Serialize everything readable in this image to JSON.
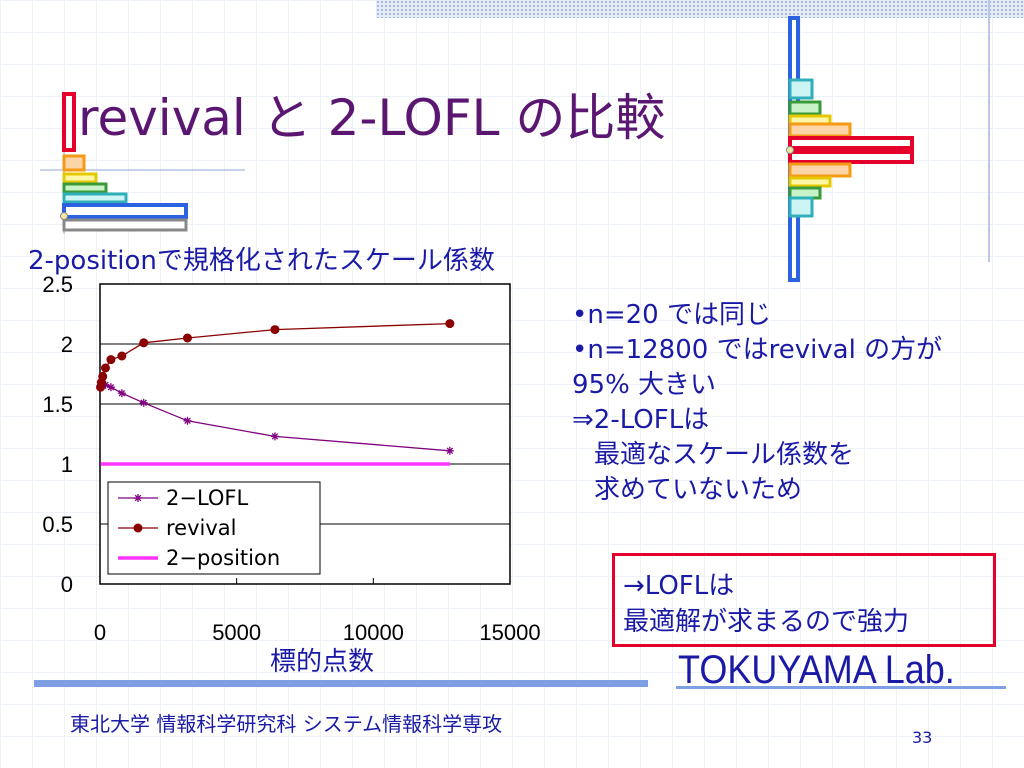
{
  "slide": {
    "title": "revival と 2-LOFL の比較",
    "subtitle": "2-positionで規格化されたスケール係数",
    "bullets": [
      {
        "text": "•n=20 では同じ",
        "indent": false
      },
      {
        "text": "•n=12800 ではrevival の方が",
        "indent": false
      },
      {
        "text": "95% 大きい",
        "indent": false
      },
      {
        "text": "⇒2-LOFLは",
        "indent": false
      },
      {
        "text": "最適なスケール係数を",
        "indent": true
      },
      {
        "text": "求めていないため",
        "indent": true
      }
    ],
    "box_lines": [
      "→LOFLは",
      "最適解が求まるので強力"
    ],
    "lab_name": "TOKUYAMA Lab.",
    "footer": "東北大学 情報科学研究科 システム情報科学専攻",
    "page_number": "33"
  },
  "colors": {
    "text_blue": "#1a1aa6",
    "title_purple": "#5a1670",
    "box_red": "#e4002b",
    "series_2lofl": "#800080",
    "series_revival": "#8b0000",
    "series_2position": "#ff33ff"
  },
  "chart_data": {
    "type": "line",
    "title": "",
    "xlabel": "標的点数",
    "ylabel": "",
    "xlim": [
      0,
      15000
    ],
    "ylim": [
      0,
      2.5
    ],
    "x_ticks": [
      "0",
      "5000",
      "10000",
      "15000"
    ],
    "y_ticks": [
      "0",
      "0.5",
      "1",
      "1.5",
      "2",
      "2.5"
    ],
    "y_grid": true,
    "legend_position": "bottom-left",
    "series": [
      {
        "name": "2−LOFL",
        "marker": "star",
        "color": "#800080",
        "x": [
          20,
          50,
          100,
          200,
          400,
          800,
          1600,
          3200,
          6400,
          12800
        ],
        "y": [
          1.64,
          1.66,
          1.67,
          1.66,
          1.64,
          1.59,
          1.51,
          1.36,
          1.23,
          1.11
        ]
      },
      {
        "name": "revival",
        "marker": "circle",
        "color": "#8b0000",
        "x": [
          20,
          50,
          100,
          200,
          400,
          800,
          1600,
          3200,
          6400,
          12800
        ],
        "y": [
          1.64,
          1.68,
          1.73,
          1.8,
          1.87,
          1.9,
          2.01,
          2.05,
          2.12,
          2.17
        ]
      },
      {
        "name": "2−position",
        "marker": "none",
        "color": "#ff33ff",
        "x": [
          20,
          12800
        ],
        "y": [
          1.0,
          1.0
        ]
      }
    ]
  }
}
